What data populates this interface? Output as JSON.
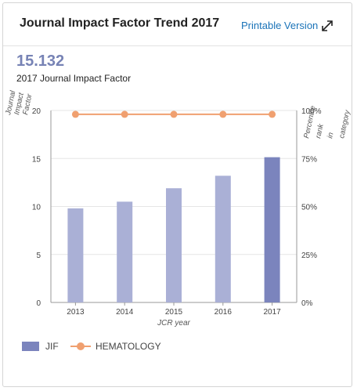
{
  "header": {
    "title": "Journal Impact Factor Trend 2017",
    "printable_label": "Printable Version",
    "expand_icon": "expand-arrows-icon"
  },
  "summary": {
    "value": "15.132",
    "label": "2017 Journal Impact Factor"
  },
  "legend": {
    "jif_label": "JIF",
    "category_label": "HEMATOLOGY"
  },
  "chart_data": {
    "type": "bar",
    "categories": [
      "2013",
      "2014",
      "2015",
      "2016",
      "2017"
    ],
    "xlabel": "JCR year",
    "ylabel": "Journal Impact Factor",
    "y2label": "Percentile rank in category",
    "ylim": [
      0,
      20
    ],
    "y2lim": [
      0,
      100
    ],
    "yticks": [
      "0",
      "5",
      "10",
      "15",
      "20"
    ],
    "y2ticks": [
      "0%",
      "25%",
      "50%",
      "75%",
      "100%"
    ],
    "series": [
      {
        "name": "JIF",
        "type": "bar",
        "axis": "left",
        "values": [
          9.8,
          10.5,
          11.9,
          13.2,
          15.132
        ]
      },
      {
        "name": "HEMATOLOGY",
        "type": "line",
        "axis": "right",
        "values": [
          98,
          98,
          98,
          98,
          98
        ]
      }
    ],
    "colors": {
      "bar": "#aab0d6",
      "bar_highlight": "#7b84bd",
      "line": "#f0a070",
      "grid": "#e6e6e6",
      "axis": "#999999"
    },
    "grid": true,
    "legend_position": "bottom-left"
  }
}
